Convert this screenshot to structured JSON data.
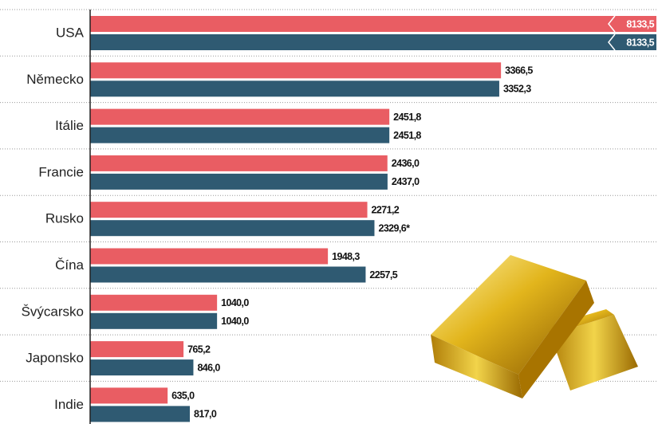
{
  "chart_data": {
    "type": "bar",
    "orientation": "horizontal",
    "categories": [
      "USA",
      "Německo",
      "Itálie",
      "Francie",
      "Rusko",
      "Čína",
      "Švýcarsko",
      "Japonsko",
      "Indie"
    ],
    "series": [
      {
        "color": "#e95d63",
        "values": [
          8133.5,
          3366.5,
          2451.8,
          2436.0,
          2271.2,
          1948.3,
          1040.0,
          765.2,
          635.0
        ],
        "value_labels": [
          "8133,5",
          "3366,5",
          "2451,8",
          "2436,0",
          "2271,2",
          "1948,3",
          "1040,0",
          "765,2",
          "635,0"
        ]
      },
      {
        "color": "#2f5a72",
        "values": [
          8133.5,
          3352.3,
          2451.8,
          2437.0,
          2329.6,
          2257.5,
          1040.0,
          846.0,
          817.0
        ],
        "value_labels": [
          "8133,5",
          "3352,3",
          "2451,8",
          "2437,0",
          "2329,6*",
          "2257,5",
          "1040,0",
          "846,0",
          "817,0"
        ]
      }
    ],
    "xlim": [
      0,
      4640
    ]
  }
}
